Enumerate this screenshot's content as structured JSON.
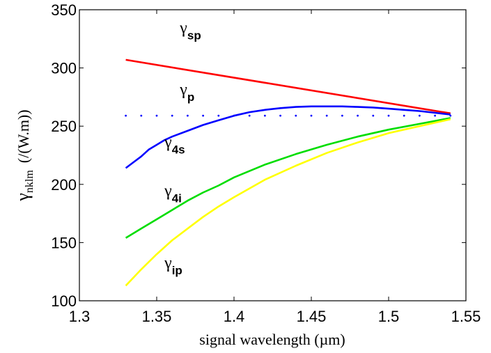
{
  "chart_data": {
    "type": "line",
    "title": "",
    "xlabel": "signal wavelength (µm)",
    "ylabel": {
      "symbol": "γ",
      "subscript": "nklm",
      "unit": "(/(W.m))"
    },
    "xlim": [
      1.3,
      1.55
    ],
    "ylim": [
      100,
      350
    ],
    "xticks": [
      1.3,
      1.35,
      1.4,
      1.45,
      1.5,
      1.55
    ],
    "xtick_labels": [
      "1.3",
      "1.35",
      "1.4",
      "1.45",
      "1.5",
      "1.55"
    ],
    "yticks": [
      100,
      150,
      200,
      250,
      300,
      350
    ],
    "ytick_labels": [
      "100",
      "150",
      "200",
      "250",
      "300",
      "350"
    ],
    "grid": false,
    "legend": "none",
    "series": [
      {
        "color": "#ff0000",
        "style": "solid",
        "x": [
          1.33,
          1.54
        ],
        "y": [
          307,
          261
        ]
      },
      {
        "color": "#0000ff",
        "style": "solid",
        "x": [
          1.33,
          1.335,
          1.34,
          1.345,
          1.35,
          1.355,
          1.36,
          1.37,
          1.38,
          1.39,
          1.4,
          1.41,
          1.42,
          1.43,
          1.44,
          1.45,
          1.46,
          1.47,
          1.48,
          1.49,
          1.5,
          1.51,
          1.52,
          1.53,
          1.54
        ],
        "y": [
          214,
          219,
          224,
          230,
          234,
          238,
          241,
          246,
          251,
          255,
          259,
          262,
          264,
          265.5,
          266.5,
          267,
          267,
          267,
          266.5,
          266,
          265,
          264,
          263,
          261.5,
          260
        ]
      },
      {
        "color": "#00dd00",
        "style": "solid",
        "x": [
          1.33,
          1.34,
          1.35,
          1.36,
          1.37,
          1.38,
          1.39,
          1.4,
          1.42,
          1.44,
          1.46,
          1.48,
          1.5,
          1.52,
          1.54
        ],
        "y": [
          154,
          162,
          170,
          178,
          186,
          193,
          199,
          206,
          217,
          226,
          234,
          241,
          247,
          252,
          257
        ]
      },
      {
        "color": "#ffff00",
        "style": "solid",
        "x": [
          1.33,
          1.34,
          1.35,
          1.36,
          1.37,
          1.38,
          1.39,
          1.4,
          1.42,
          1.44,
          1.46,
          1.48,
          1.5,
          1.52,
          1.54
        ],
        "y": [
          113,
          127,
          140,
          152,
          162,
          172,
          181,
          189,
          204,
          216,
          227,
          236,
          244,
          250,
          256
        ]
      },
      {
        "color": "#0000ff",
        "style": "dotted",
        "x": [
          1.33,
          1.54
        ],
        "y": [
          259,
          259
        ]
      }
    ],
    "annotations": [
      {
        "symbol": "γ",
        "subscript": "sp",
        "x": 1.365,
        "y": 330
      },
      {
        "symbol": "γ",
        "subscript": "p",
        "x": 1.365,
        "y": 277
      },
      {
        "symbol": "γ",
        "subscript": "4s",
        "x": 1.355,
        "y": 232
      },
      {
        "symbol": "γ",
        "subscript": "4i",
        "x": 1.355,
        "y": 190
      },
      {
        "symbol": "γ",
        "subscript": "ip",
        "x": 1.355,
        "y": 128
      }
    ]
  }
}
